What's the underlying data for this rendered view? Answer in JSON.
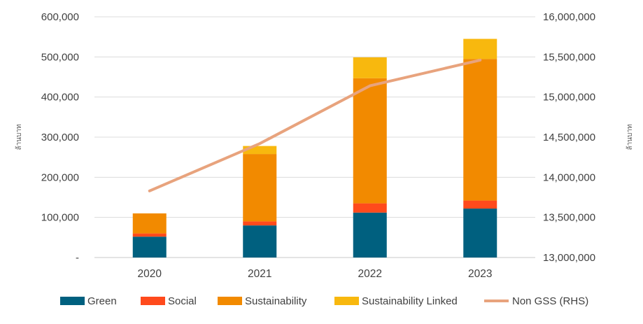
{
  "chart_data": {
    "type": "bar",
    "stacked": true,
    "categories": [
      "2020",
      "2021",
      "2022",
      "2023"
    ],
    "series": [
      {
        "name": "Green",
        "axis": "left",
        "color": "#00607F",
        "values": [
          52000,
          80000,
          112000,
          122000
        ]
      },
      {
        "name": "Social",
        "axis": "left",
        "color": "#FF4A1C",
        "values": [
          8000,
          10000,
          23000,
          20000
        ]
      },
      {
        "name": "Sustainability",
        "axis": "left",
        "color": "#F28A00",
        "values": [
          50000,
          168000,
          312000,
          353000
        ]
      },
      {
        "name": "Sustainability Linked",
        "axis": "left",
        "color": "#F8B80E",
        "values": [
          0,
          20000,
          52000,
          50000
        ]
      }
    ],
    "line_series": [
      {
        "name": "Non GSS (RHS)",
        "axis": "right",
        "color": "#E8A37D",
        "values": [
          13830000,
          14420000,
          15140000,
          15460000
        ]
      }
    ],
    "left_axis": {
      "title": "ล้านบาท",
      "ylim": [
        0,
        600000
      ],
      "ticks": [
        0,
        100000,
        200000,
        300000,
        400000,
        500000,
        600000
      ],
      "tick_labels": [
        "-",
        "100,000",
        "200,000",
        "300,000",
        "400,000",
        "500,000",
        "600,000"
      ]
    },
    "right_axis": {
      "title": "ล้านบาท",
      "ylim": [
        13000000,
        16000000
      ],
      "ticks": [
        13000000,
        13500000,
        14000000,
        14500000,
        15000000,
        15500000,
        16000000
      ],
      "tick_labels": [
        "13,000,000",
        "13,500,000",
        "14,000,000",
        "14,500,000",
        "15,000,000",
        "15,500,000",
        "16,000,000"
      ]
    },
    "grid": true,
    "legend": [
      "Green",
      "Social",
      "Sustainability",
      "Sustainability Linked",
      "Non GSS (RHS)"
    ],
    "legend_position": "bottom"
  }
}
